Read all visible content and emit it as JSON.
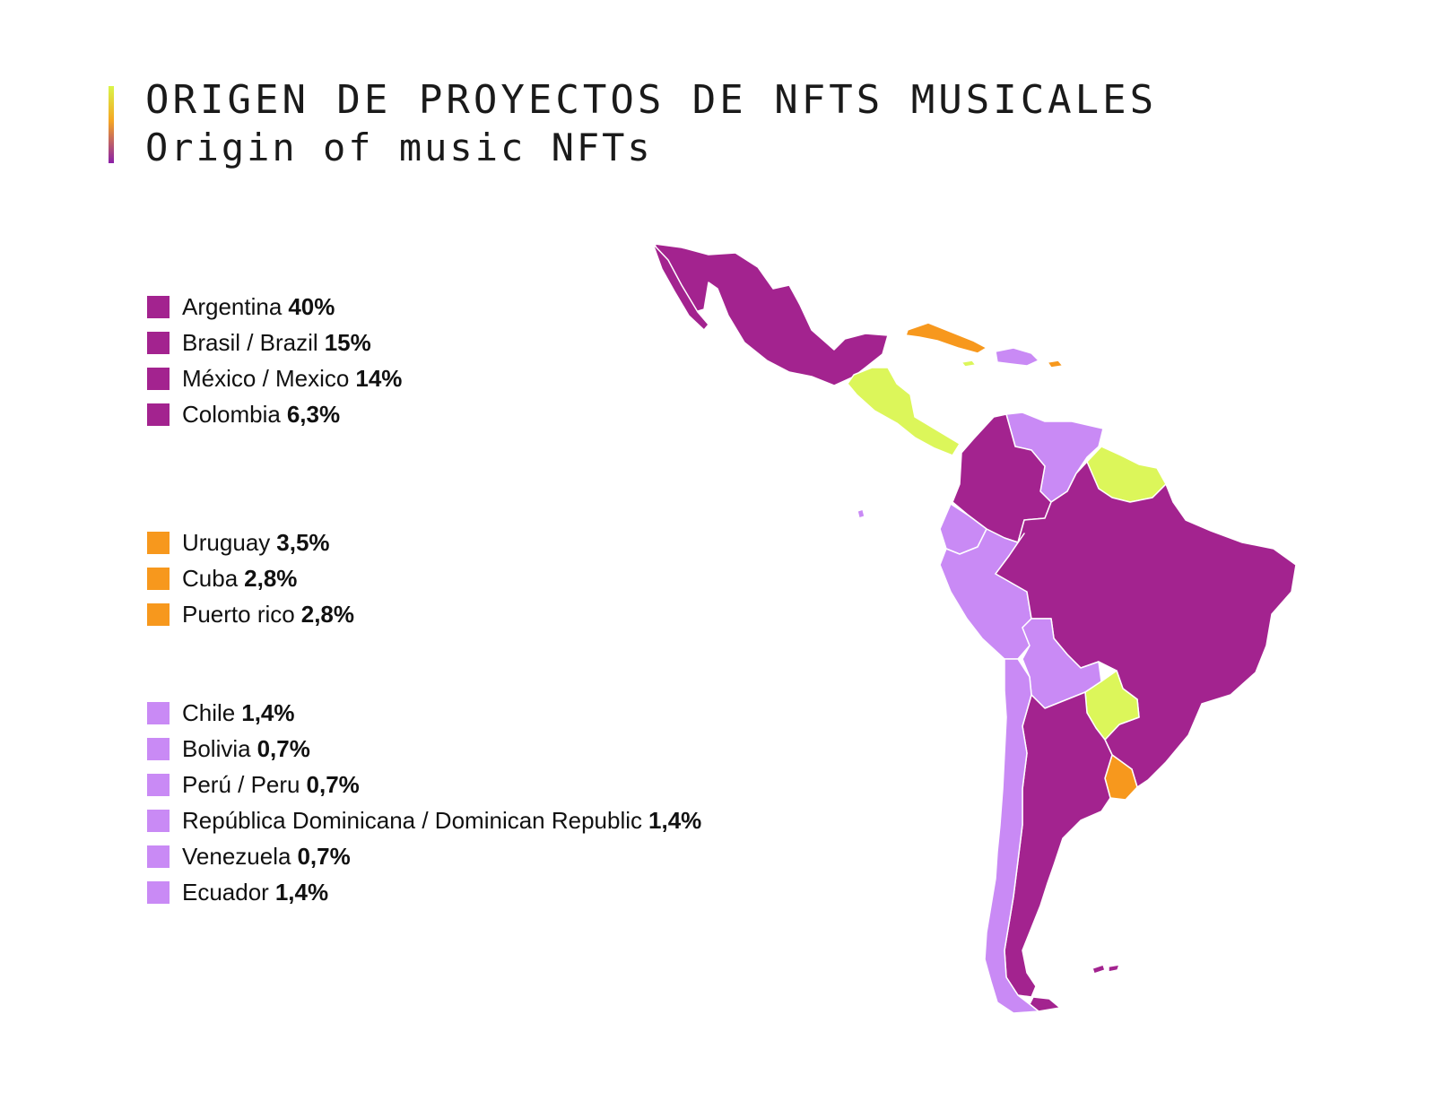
{
  "title": "ORIGEN DE PROYECTOS DE NFTS MUSICALES",
  "subtitle": "Origin of music NFTs",
  "colors": {
    "tier1": "#a3238f",
    "tier2": "#f7981d",
    "tier3": "#c98af5",
    "other": "#dcf65a"
  },
  "legend": {
    "group1": [
      {
        "label": "Argentina",
        "value": "40%"
      },
      {
        "label": "Brasil / Brazil",
        "value": "15%"
      },
      {
        "label": "México / Mexico",
        "value": "14%"
      },
      {
        "label": "Colombia",
        "value": "6,3%"
      }
    ],
    "group2": [
      {
        "label": "Uruguay",
        "value": "3,5%"
      },
      {
        "label": "Cuba",
        "value": "2,8%"
      },
      {
        "label": "Puerto rico",
        "value": "2,8%"
      }
    ],
    "group3": [
      {
        "label": "Chile",
        "value": "1,4%"
      },
      {
        "label": "Bolivia",
        "value": "0,7%"
      },
      {
        "label": "Perú / Peru",
        "value": "0,7%"
      },
      {
        "label": "República Dominicana / Dominican Republic",
        "value": "1,4%"
      },
      {
        "label": "Venezuela",
        "value": "0,7%"
      },
      {
        "label": "Ecuador",
        "value": "1,4%"
      }
    ]
  }
}
